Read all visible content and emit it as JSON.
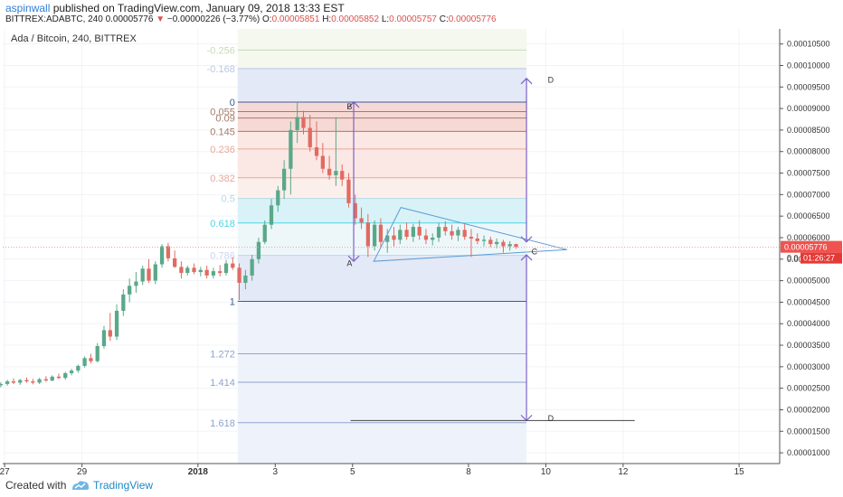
{
  "header": {
    "author": "aspinwall",
    "published_text": "published on TradingView.com, January 09, 2018 13:33 EST",
    "symbol_interval": "BITTREX:ADABTC, 240",
    "last_price": "0.00005776",
    "change_arrow": "▼",
    "change": "−0.00000226 (−3.77%)",
    "o_label": "O:",
    "o_value": "0.00005851",
    "h_label": "H:",
    "h_value": "0.00005852",
    "l_label": "L:",
    "l_value": "0.00005757",
    "c_label": "C:",
    "c_value": "0.00005776"
  },
  "chart_data": {
    "type": "candlestick",
    "title": "Ada / Bitcoin, 240, BITTREX",
    "y_axis": {
      "ticks": [
        "0.00010500",
        "0.00010000",
        "0.00009500",
        "0.00009000",
        "0.00008500",
        "0.00008000",
        "0.00007500",
        "0.00007000",
        "0.00006500",
        "0.00006000",
        "0.00005500",
        "0.00005000",
        "0.00004500",
        "0.00004000",
        "0.00003500",
        "0.00003000",
        "0.00002500",
        "0.00002000",
        "0.00001500",
        "0.00001000"
      ],
      "range": [
        7.5e-06,
        0.0001085
      ]
    },
    "x_axis": {
      "ticks": [
        {
          "label": "27",
          "day": 27
        },
        {
          "label": "29",
          "day": 29
        },
        {
          "label": "2018",
          "day": 32
        },
        {
          "label": "3",
          "day": 34
        },
        {
          "label": "5",
          "day": 36
        },
        {
          "label": "8",
          "day": 39
        },
        {
          "label": "10",
          "day": 41
        },
        {
          "label": "12",
          "day": 43
        },
        {
          "label": "15",
          "day": 46
        }
      ],
      "range": [
        26.95,
        47.05
      ]
    },
    "price_tag": {
      "value": "0.00005776",
      "price": 5.776e-05
    },
    "countdown_tag": {
      "label_left": "0.0",
      "value": "01:26:27"
    },
    "fibonacci": {
      "range_days": [
        33.03,
        40.5
      ],
      "levels": [
        {
          "label": "-0.256",
          "price": 0.0001036,
          "color": "#c9dab3"
        },
        {
          "label": "-0.168",
          "price": 9.93e-05,
          "color": "#b9c7e6"
        },
        {
          "label": "0",
          "price": 9.15e-05,
          "color": "#3d5a96"
        },
        {
          "label": "0.055",
          "price": 8.93e-05,
          "color": "#a77a6a"
        },
        {
          "label": "0.09",
          "price": 8.78e-05,
          "color": "#a77a6a"
        },
        {
          "label": "0.145",
          "price": 8.47e-05,
          "color": "#a77a6a"
        },
        {
          "label": "0.236",
          "price": 8.06e-05,
          "color": "#e8a79a"
        },
        {
          "label": "0.382",
          "price": 7.39e-05,
          "color": "#e8a79a"
        },
        {
          "label": "0.5",
          "price": 6.91e-05,
          "color": "#b5d9e6"
        },
        {
          "label": "0.618",
          "price": 6.34e-05,
          "color": "#4bd6e6"
        },
        {
          "label": "0.786",
          "price": 5.59e-05,
          "color": "#c9d4ee"
        },
        {
          "label": "1",
          "price": 4.52e-05,
          "color": "#3d5a96"
        },
        {
          "label": "1.272",
          "price": 3.3e-05,
          "color": "#8fa4cf"
        },
        {
          "label": "1.414",
          "price": 2.64e-05,
          "color": "#8fa4cf"
        },
        {
          "label": "1.618",
          "price": 1.7e-05,
          "color": "#8fa4cf"
        }
      ]
    },
    "annotations": [
      {
        "label": "A",
        "day": 35.85,
        "price": 5.42e-05
      },
      {
        "label": "B",
        "day": 35.85,
        "price": 9.07e-05
      },
      {
        "label": "C",
        "day": 40.63,
        "price": 5.7e-05
      },
      {
        "label": "D",
        "day": 41.05,
        "price": 9.68e-05
      },
      {
        "label": "D",
        "day": 41.05,
        "price": 1.82e-05
      }
    ],
    "candles": [
      {
        "d": 26.9,
        "o": 2.57e-05,
        "h": 2.64e-05,
        "l": 2.52e-05,
        "c": 2.6e-05
      },
      {
        "d": 27.07,
        "o": 2.6e-05,
        "h": 2.7e-05,
        "l": 2.56e-05,
        "c": 2.66e-05
      },
      {
        "d": 27.23,
        "o": 2.66e-05,
        "h": 2.73e-05,
        "l": 2.6e-05,
        "c": 2.63e-05
      },
      {
        "d": 27.4,
        "o": 2.63e-05,
        "h": 2.72e-05,
        "l": 2.58e-05,
        "c": 2.69e-05
      },
      {
        "d": 27.57,
        "o": 2.69e-05,
        "h": 2.75e-05,
        "l": 2.63e-05,
        "c": 2.66e-05
      },
      {
        "d": 27.73,
        "o": 2.66e-05,
        "h": 2.72e-05,
        "l": 2.59e-05,
        "c": 2.63e-05
      },
      {
        "d": 27.9,
        "o": 2.63e-05,
        "h": 2.74e-05,
        "l": 2.6e-05,
        "c": 2.71e-05
      },
      {
        "d": 28.07,
        "o": 2.71e-05,
        "h": 2.78e-05,
        "l": 2.65e-05,
        "c": 2.68e-05
      },
      {
        "d": 28.23,
        "o": 2.68e-05,
        "h": 2.8e-05,
        "l": 2.66e-05,
        "c": 2.77e-05
      },
      {
        "d": 28.4,
        "o": 2.77e-05,
        "h": 2.84e-05,
        "l": 2.71e-05,
        "c": 2.74e-05
      },
      {
        "d": 28.57,
        "o": 2.74e-05,
        "h": 2.88e-05,
        "l": 2.7e-05,
        "c": 2.85e-05
      },
      {
        "d": 28.73,
        "o": 2.85e-05,
        "h": 2.95e-05,
        "l": 2.8e-05,
        "c": 2.91e-05
      },
      {
        "d": 28.9,
        "o": 2.91e-05,
        "h": 3.05e-05,
        "l": 2.86e-05,
        "c": 3.02e-05
      },
      {
        "d": 29.07,
        "o": 3.02e-05,
        "h": 3.24e-05,
        "l": 2.98e-05,
        "c": 3.2e-05
      },
      {
        "d": 29.23,
        "o": 3.2e-05,
        "h": 3.3e-05,
        "l": 3.08e-05,
        "c": 3.13e-05
      },
      {
        "d": 29.4,
        "o": 3.13e-05,
        "h": 3.55e-05,
        "l": 3.1e-05,
        "c": 3.48e-05
      },
      {
        "d": 29.57,
        "o": 3.48e-05,
        "h": 3.95e-05,
        "l": 3.42e-05,
        "c": 3.85e-05
      },
      {
        "d": 29.73,
        "o": 3.85e-05,
        "h": 4.25e-05,
        "l": 3.6e-05,
        "c": 3.7e-05
      },
      {
        "d": 29.9,
        "o": 3.7e-05,
        "h": 4.45e-05,
        "l": 3.62e-05,
        "c": 4.3e-05
      },
      {
        "d": 30.07,
        "o": 4.3e-05,
        "h": 4.8e-05,
        "l": 4.18e-05,
        "c": 4.68e-05
      },
      {
        "d": 30.23,
        "o": 4.68e-05,
        "h": 5.05e-05,
        "l": 4.5e-05,
        "c": 4.88e-05
      },
      {
        "d": 30.4,
        "o": 4.88e-05,
        "h": 5.2e-05,
        "l": 4.72e-05,
        "c": 4.98e-05
      },
      {
        "d": 30.57,
        "o": 4.98e-05,
        "h": 5.35e-05,
        "l": 4.9e-05,
        "c": 5.28e-05
      },
      {
        "d": 30.73,
        "o": 5.28e-05,
        "h": 5.5e-05,
        "l": 4.95e-05,
        "c": 5e-05
      },
      {
        "d": 30.9,
        "o": 5e-05,
        "h": 5.45e-05,
        "l": 4.92e-05,
        "c": 5.38e-05
      },
      {
        "d": 31.07,
        "o": 5.38e-05,
        "h": 5.85e-05,
        "l": 5.3e-05,
        "c": 5.8e-05
      },
      {
        "d": 31.23,
        "o": 5.8e-05,
        "h": 5.88e-05,
        "l": 5.45e-05,
        "c": 5.52e-05
      },
      {
        "d": 31.4,
        "o": 5.52e-05,
        "h": 5.7e-05,
        "l": 5.3e-05,
        "c": 5.32e-05
      },
      {
        "d": 31.57,
        "o": 5.32e-05,
        "h": 5.45e-05,
        "l": 5.05e-05,
        "c": 5.18e-05
      },
      {
        "d": 31.73,
        "o": 5.18e-05,
        "h": 5.35e-05,
        "l": 5.12e-05,
        "c": 5.3e-05
      },
      {
        "d": 31.9,
        "o": 5.3e-05,
        "h": 5.4e-05,
        "l": 5.15e-05,
        "c": 5.2e-05
      },
      {
        "d": 32.07,
        "o": 5.2e-05,
        "h": 5.32e-05,
        "l": 5.1e-05,
        "c": 5.25e-05
      },
      {
        "d": 32.23,
        "o": 5.25e-05,
        "h": 5.35e-05,
        "l": 5.05e-05,
        "c": 5.12e-05
      },
      {
        "d": 32.4,
        "o": 5.12e-05,
        "h": 5.3e-05,
        "l": 5.05e-05,
        "c": 5.22e-05
      },
      {
        "d": 32.57,
        "o": 5.22e-05,
        "h": 5.36e-05,
        "l": 5.1e-05,
        "c": 5.18e-05
      },
      {
        "d": 32.73,
        "o": 5.18e-05,
        "h": 5.48e-05,
        "l": 5.12e-05,
        "c": 5.4e-05
      },
      {
        "d": 32.9,
        "o": 5.4e-05,
        "h": 5.55e-05,
        "l": 5.25e-05,
        "c": 5.3e-05
      },
      {
        "d": 33.07,
        "o": 5.3e-05,
        "h": 5.4e-05,
        "l": 4.55e-05,
        "c": 4.95e-05
      },
      {
        "d": 33.23,
        "o": 4.95e-05,
        "h": 5.25e-05,
        "l": 4.8e-05,
        "c": 5.12e-05
      },
      {
        "d": 33.4,
        "o": 5.12e-05,
        "h": 5.6e-05,
        "l": 5e-05,
        "c": 5.5e-05
      },
      {
        "d": 33.57,
        "o": 5.5e-05,
        "h": 6e-05,
        "l": 5.4e-05,
        "c": 5.9e-05
      },
      {
        "d": 33.73,
        "o": 5.9e-05,
        "h": 6.4e-05,
        "l": 5.85e-05,
        "c": 6.3e-05
      },
      {
        "d": 33.9,
        "o": 6.3e-05,
        "h": 6.9e-05,
        "l": 6.2e-05,
        "c": 6.75e-05
      },
      {
        "d": 34.07,
        "o": 6.75e-05,
        "h": 7.2e-05,
        "l": 6.6e-05,
        "c": 7.1e-05
      },
      {
        "d": 34.23,
        "o": 7.1e-05,
        "h": 7.8e-05,
        "l": 6.9e-05,
        "c": 7.6e-05
      },
      {
        "d": 34.4,
        "o": 7.6e-05,
        "h": 8.7e-05,
        "l": 7e-05,
        "c": 8.5e-05
      },
      {
        "d": 34.57,
        "o": 8.5e-05,
        "h": 9.15e-05,
        "l": 8.2e-05,
        "c": 8.8e-05
      },
      {
        "d": 34.73,
        "o": 8.8e-05,
        "h": 8.95e-05,
        "l": 8.4e-05,
        "c": 8.55e-05
      },
      {
        "d": 34.9,
        "o": 8.55e-05,
        "h": 8.85e-05,
        "l": 8e-05,
        "c": 8.1e-05
      },
      {
        "d": 35.07,
        "o": 8.1e-05,
        "h": 8.7e-05,
        "l": 7.8e-05,
        "c": 7.9e-05
      },
      {
        "d": 35.23,
        "o": 7.9e-05,
        "h": 8.2e-05,
        "l": 7.5e-05,
        "c": 7.6e-05
      },
      {
        "d": 35.4,
        "o": 7.6e-05,
        "h": 7.9e-05,
        "l": 7.35e-05,
        "c": 7.45e-05
      },
      {
        "d": 35.57,
        "o": 7.45e-05,
        "h": 8.8e-05,
        "l": 7.2e-05,
        "c": 7.55e-05
      },
      {
        "d": 35.73,
        "o": 7.55e-05,
        "h": 7.7e-05,
        "l": 7.2e-05,
        "c": 7.35e-05
      },
      {
        "d": 35.9,
        "o": 7.35e-05,
        "h": 7.5e-05,
        "l": 6.7e-05,
        "c": 6.8e-05
      },
      {
        "d": 36.07,
        "o": 6.8e-05,
        "h": 7e-05,
        "l": 6.3e-05,
        "c": 6.45e-05
      },
      {
        "d": 36.23,
        "o": 6.45e-05,
        "h": 6.7e-05,
        "l": 6.2e-05,
        "c": 6.35e-05
      },
      {
        "d": 36.4,
        "o": 6.35e-05,
        "h": 6.55e-05,
        "l": 5.55e-05,
        "c": 5.8e-05
      },
      {
        "d": 36.57,
        "o": 5.8e-05,
        "h": 6.4e-05,
        "l": 5.7e-05,
        "c": 6.3e-05
      },
      {
        "d": 36.73,
        "o": 6.3e-05,
        "h": 6.45e-05,
        "l": 5.75e-05,
        "c": 5.9e-05
      },
      {
        "d": 36.9,
        "o": 5.9e-05,
        "h": 6.2e-05,
        "l": 5.65e-05,
        "c": 6.05e-05
      },
      {
        "d": 37.07,
        "o": 6.05e-05,
        "h": 6.25e-05,
        "l": 5.8e-05,
        "c": 5.95e-05
      },
      {
        "d": 37.23,
        "o": 5.95e-05,
        "h": 6.3e-05,
        "l": 5.85e-05,
        "c": 6.18e-05
      },
      {
        "d": 37.4,
        "o": 6.18e-05,
        "h": 6.35e-05,
        "l": 5.95e-05,
        "c": 6.02e-05
      },
      {
        "d": 37.57,
        "o": 6.02e-05,
        "h": 6.32e-05,
        "l": 5.9e-05,
        "c": 6.25e-05
      },
      {
        "d": 37.73,
        "o": 6.25e-05,
        "h": 6.4e-05,
        "l": 5.95e-05,
        "c": 6.05e-05
      },
      {
        "d": 37.9,
        "o": 6.05e-05,
        "h": 6.2e-05,
        "l": 5.85e-05,
        "c": 5.95e-05
      },
      {
        "d": 38.07,
        "o": 5.95e-05,
        "h": 6.1e-05,
        "l": 5.82e-05,
        "c": 6e-05
      },
      {
        "d": 38.23,
        "o": 6e-05,
        "h": 6.35e-05,
        "l": 5.9e-05,
        "c": 6.25e-05
      },
      {
        "d": 38.4,
        "o": 6.25e-05,
        "h": 6.38e-05,
        "l": 6.05e-05,
        "c": 6.15e-05
      },
      {
        "d": 38.57,
        "o": 6.15e-05,
        "h": 6.3e-05,
        "l": 5.95e-05,
        "c": 6.05e-05
      },
      {
        "d": 38.73,
        "o": 6.05e-05,
        "h": 6.25e-05,
        "l": 5.92e-05,
        "c": 6.18e-05
      },
      {
        "d": 38.9,
        "o": 6.18e-05,
        "h": 6.32e-05,
        "l": 5.95e-05,
        "c": 6.02e-05
      },
      {
        "d": 39.07,
        "o": 6.02e-05,
        "h": 6.2e-05,
        "l": 5.55e-05,
        "c": 5.98e-05
      },
      {
        "d": 39.23,
        "o": 5.98e-05,
        "h": 6.1e-05,
        "l": 5.85e-05,
        "c": 5.92e-05
      },
      {
        "d": 39.4,
        "o": 5.92e-05,
        "h": 6.05e-05,
        "l": 5.8e-05,
        "c": 5.95e-05
      },
      {
        "d": 39.57,
        "o": 5.95e-05,
        "h": 6.02e-05,
        "l": 5.78e-05,
        "c": 5.85e-05
      },
      {
        "d": 39.73,
        "o": 5.85e-05,
        "h": 5.98e-05,
        "l": 5.75e-05,
        "c": 5.9e-05
      },
      {
        "d": 39.9,
        "o": 5.9e-05,
        "h": 5.95e-05,
        "l": 5.65e-05,
        "c": 5.8e-05
      },
      {
        "d": 40.07,
        "o": 5.8e-05,
        "h": 5.92e-05,
        "l": 5.7e-05,
        "c": 5.85e-05
      },
      {
        "d": 40.23,
        "o": 5.85e-05,
        "h": 5.86e-05,
        "l": 5.74e-05,
        "c": 5.78e-05
      }
    ]
  },
  "footer": {
    "created_with": "Created with",
    "brand": "TradingView"
  },
  "colors": {
    "up": "#5aa88a",
    "down": "#e06b62",
    "fib_outer_bg": "#eef3fb",
    "fib_top_bg": "#f4f8ee",
    "triangle": "#5b9bd5",
    "measure": "#7b61c9",
    "price_tag": "#ef5350",
    "countdown_tag": "#e53935"
  }
}
